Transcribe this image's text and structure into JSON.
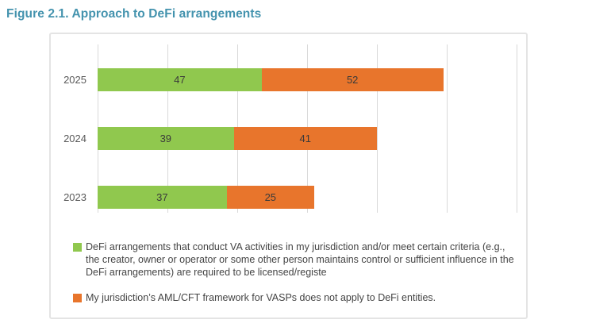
{
  "figure": {
    "title": "Figure 2.1. Approach to DeFi arrangements",
    "title_color": "#4493ae"
  },
  "chart_data": {
    "type": "bar",
    "orientation": "horizontal",
    "stacked": true,
    "grid": true,
    "legend_position": "bottom",
    "categories": [
      "2025",
      "2024",
      "2023"
    ],
    "series": [
      {
        "name": "DeFi arrangements that conduct VA activities in my jurisdiction and/or meet certain criteria (e.g., the creator, owner or operator or some other person maintains control or sufficient influence in the DeFi arrangements) are required to be licensed/registe",
        "color": "#90c84e",
        "values": [
          47,
          39,
          37
        ]
      },
      {
        "name": "My jurisdiction’s AML/CFT framework for VASPs does not apply to DeFi entities.",
        "color": "#e8752c",
        "values": [
          52,
          41,
          25
        ]
      }
    ],
    "totals": [
      99,
      80,
      62
    ],
    "xlim": [
      0,
      120
    ],
    "gridline_interval": 20,
    "gridline_color": "#d9d9d9"
  }
}
